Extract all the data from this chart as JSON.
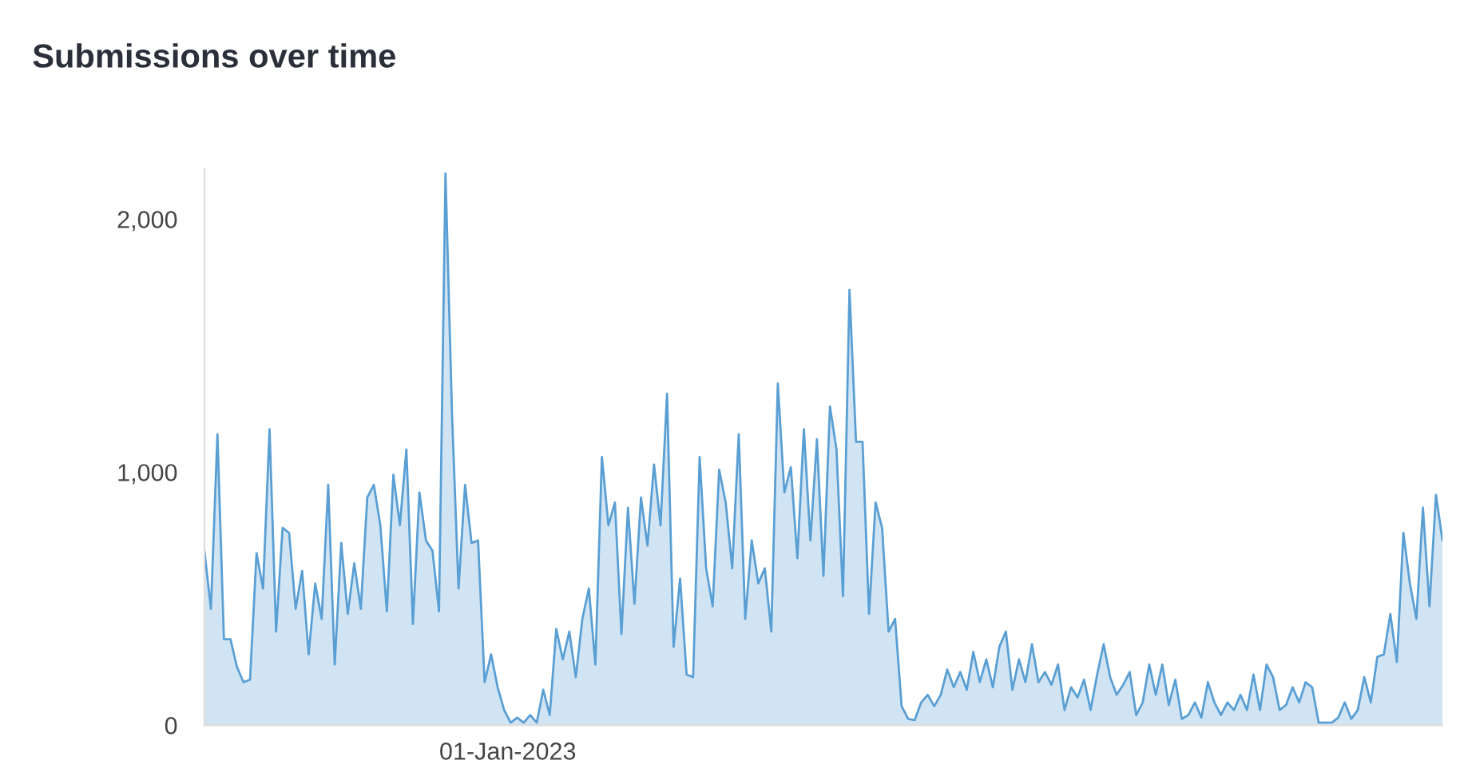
{
  "chart_data": {
    "type": "area",
    "title": "Submissions over time",
    "annotations": [
      "01-Jan-2023"
    ],
    "categories": [
      null,
      null,
      null,
      null,
      null,
      null,
      null,
      null,
      null,
      null,
      null,
      null,
      null,
      null,
      null,
      null,
      null,
      null,
      null,
      null,
      null,
      null,
      null,
      null,
      null,
      null,
      null,
      null,
      null,
      null,
      null,
      null,
      null,
      null,
      null,
      null,
      null,
      null,
      null,
      null,
      null,
      null,
      null,
      null,
      null,
      null,
      null,
      null,
      null,
      null,
      null,
      null,
      null,
      null,
      null,
      null,
      null,
      null,
      null,
      null,
      null,
      null,
      null,
      null,
      null,
      null,
      null,
      null,
      null,
      null,
      null,
      null,
      null,
      null,
      null,
      null,
      null,
      null,
      null,
      null,
      null,
      null,
      null,
      null,
      null,
      null,
      null,
      null,
      null,
      null,
      null,
      null,
      null,
      null,
      null,
      null,
      null,
      null,
      null,
      null,
      null,
      null,
      null,
      null,
      null,
      null,
      null,
      null,
      null,
      null,
      null,
      null,
      null,
      null,
      null,
      null,
      null,
      null,
      null,
      null,
      null,
      null,
      null,
      null,
      null,
      null,
      null,
      null,
      null,
      null,
      null,
      null,
      null,
      null,
      null,
      null,
      null,
      null,
      null,
      null,
      null,
      null,
      null,
      null,
      null,
      null,
      null,
      null,
      null,
      null,
      null,
      null,
      null,
      null,
      null,
      null,
      null,
      null,
      null,
      null,
      null,
      null,
      null,
      null,
      null,
      null,
      null,
      null,
      null,
      null,
      null,
      null,
      null,
      null,
      null,
      null,
      null,
      null,
      null,
      null,
      null,
      null,
      null,
      null,
      null,
      null,
      null,
      null,
      null,
      null,
      null
    ],
    "ylim": [
      0,
      2200
    ],
    "yticks": [
      {
        "value": 0,
        "label": "0"
      },
      {
        "value": 1000,
        "label": "1,000"
      },
      {
        "value": 2000,
        "label": "2,000"
      }
    ],
    "grid": false,
    "series": [
      {
        "color": "#5a9fd4",
        "values": [
          690,
          460,
          1150,
          340,
          340,
          230,
          170,
          180,
          680,
          540,
          1170,
          370,
          780,
          760,
          460,
          610,
          280,
          560,
          420,
          950,
          240,
          720,
          440,
          640,
          460,
          900,
          950,
          790,
          450,
          990,
          790,
          1090,
          400,
          920,
          730,
          690,
          450,
          2180,
          1230,
          540,
          950,
          720,
          730,
          170,
          280,
          150,
          60,
          10,
          30,
          10,
          40,
          10,
          140,
          40,
          380,
          260,
          370,
          190,
          420,
          540,
          240,
          1060,
          790,
          880,
          360,
          860,
          480,
          900,
          710,
          1030,
          790,
          1310,
          310,
          580,
          200,
          190,
          1060,
          620,
          470,
          1010,
          880,
          620,
          1150,
          420,
          730,
          560,
          620,
          370,
          1350,
          920,
          1020,
          660,
          1170,
          730,
          1130,
          590,
          1260,
          1090,
          510,
          1720,
          1120,
          1120,
          440,
          880,
          780,
          370,
          420,
          75,
          25,
          20,
          90,
          120,
          75,
          120,
          220,
          150,
          210,
          140,
          290,
          170,
          260,
          150,
          310,
          370,
          140,
          260,
          170,
          320,
          170,
          210,
          160,
          240,
          60,
          150,
          110,
          180,
          60,
          200,
          320,
          190,
          120,
          160,
          210,
          40,
          90,
          240,
          120,
          240,
          80,
          180,
          25,
          40,
          90,
          30,
          170,
          90,
          40,
          90,
          60,
          120,
          60,
          200,
          60,
          240,
          190,
          60,
          80,
          150,
          90,
          170,
          150,
          10,
          10,
          10,
          30,
          90,
          25,
          60,
          190,
          90,
          270,
          280,
          440,
          250,
          760,
          560,
          420,
          860,
          470,
          910,
          730
        ]
      }
    ]
  }
}
